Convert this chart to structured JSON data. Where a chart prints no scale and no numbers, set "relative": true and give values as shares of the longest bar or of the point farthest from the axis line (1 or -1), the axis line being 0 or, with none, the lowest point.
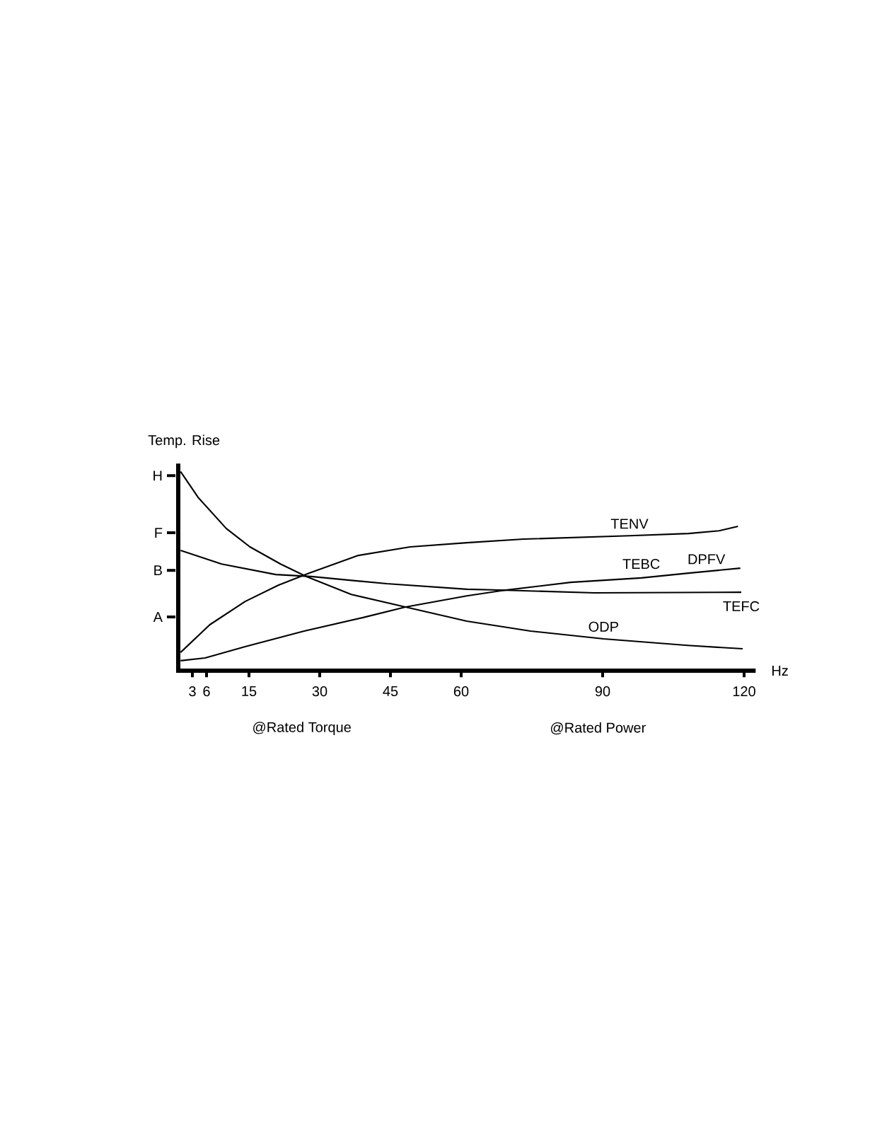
{
  "chart_data": {
    "type": "line",
    "relative": true,
    "xlabel": "Hz",
    "ylabel": "Temp. Rise",
    "xlim": [
      0,
      122
    ],
    "xticks": [
      3,
      6,
      15,
      30,
      45,
      60,
      90,
      120
    ],
    "legend": false,
    "grid": false,
    "marker": "none",
    "line_style": "solid",
    "series": [
      {
        "name": "TENV",
        "color": "#000000",
        "x": [
          0.5,
          6.7,
          14.2,
          21.2,
          27.7,
          38.2,
          49.2,
          61.2,
          73.2,
          95.7,
          108.2,
          114.7,
          118.7
        ],
        "values": [
          0.092,
          0.231,
          0.348,
          0.429,
          0.49,
          0.579,
          0.622,
          0.643,
          0.661,
          0.678,
          0.689,
          0.703,
          0.725
        ]
      },
      {
        "name": "TEBC",
        "color": "#000000",
        "x": [
          0.5,
          5.7,
          14.2,
          26.7,
          39.2,
          48.2,
          61.2,
          68.2,
          83.2,
          98.2,
          108.2,
          119.2
        ],
        "values": [
          0.05,
          0.064,
          0.121,
          0.199,
          0.267,
          0.32,
          0.376,
          0.401,
          0.444,
          0.466,
          0.49,
          0.515
        ]
      },
      {
        "name": "TEFC",
        "color": "#000000",
        "x": [
          0.5,
          9.2,
          20.7,
          28.2,
          44.2,
          61.2,
          68.2,
          88.2,
          119.4
        ],
        "values": [
          0.604,
          0.536,
          0.483,
          0.473,
          0.437,
          0.409,
          0.405,
          0.391,
          0.394
        ]
      },
      {
        "name": "ODP",
        "color": "#000000",
        "x": [
          0.5,
          4.2,
          10.2,
          15.2,
          21.7,
          27.2,
          36.7,
          48.2,
          61.2,
          74.7,
          90.2,
          108,
          119.7
        ],
        "values": [
          1,
          0.871,
          0.714,
          0.622,
          0.536,
          0.473,
          0.383,
          0.32,
          0.249,
          0.199,
          0.16,
          0.127,
          0.11
        ]
      }
    ],
    "annotations": [
      "H",
      "F",
      "B",
      "A",
      "@Rated Torque",
      "@Rated Power",
      {
        "text": "DPFV",
        "x": 112,
        "y": 0.5
      }
    ]
  }
}
